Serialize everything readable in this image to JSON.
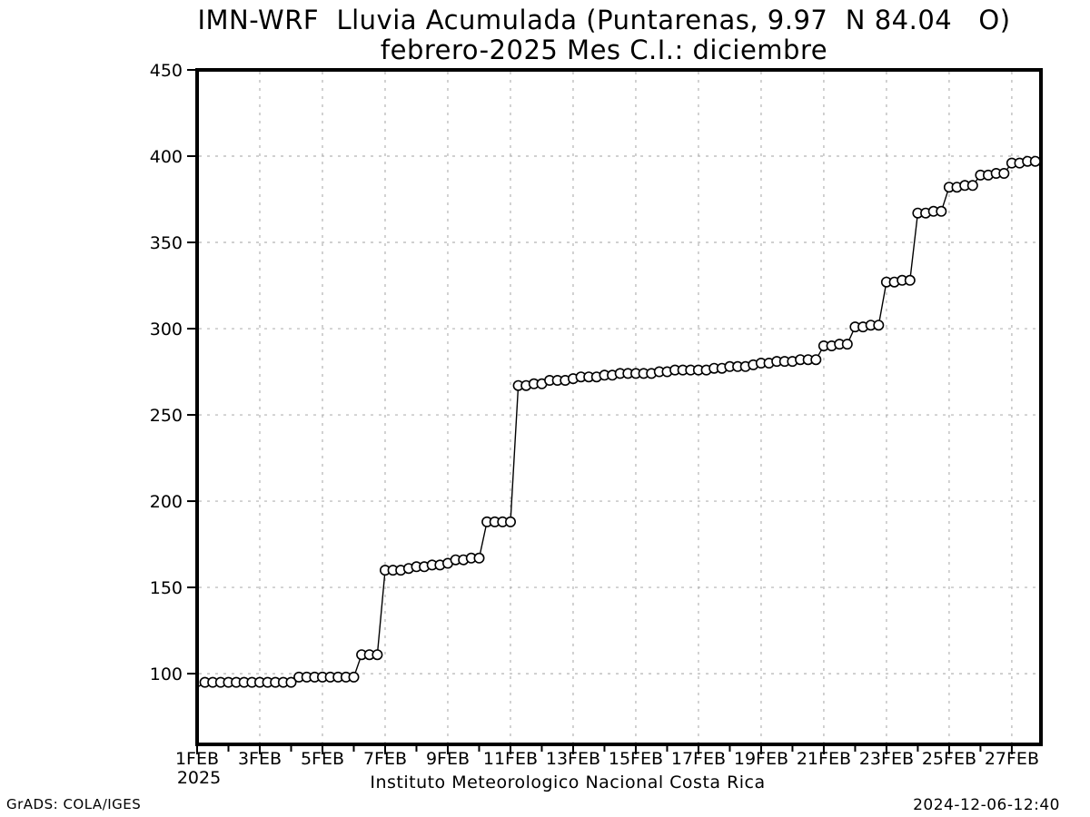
{
  "header": {
    "title_line1": "IMN-WRF  Lluvia Acumulada (Puntarenas, 9.97  N 84.04   O)",
    "title_line2": "febrero-2025 Mes C.I.: diciembre"
  },
  "footer": {
    "caption": "Instituto Meteorologico Nacional Costa Rica",
    "grads_credit": "GrADS: COLA/IGES",
    "timestamp": "2024-12-06-12:40"
  },
  "chart_data": {
    "type": "line",
    "title": "IMN-WRF  Lluvia Acumulada (Puntarenas, 9.97 N 84.04 O) — febrero-2025 Mes C.I.: diciembre",
    "xlabel": "Instituto Meteorologico Nacional Costa Rica",
    "ylabel": "",
    "grid": "dashed",
    "legend": "none",
    "marker": "open-circle",
    "colors": {
      "line": "#000000",
      "marker_fill": "#ffffff",
      "grid": "#b3b3b3",
      "axis": "#000000"
    },
    "ylim": [
      59,
      450
    ],
    "xlim_days": [
      1,
      27.93
    ],
    "y_ticks": [
      100,
      150,
      200,
      250,
      300,
      350,
      400,
      450
    ],
    "x_tick_days": [
      1,
      3,
      5,
      7,
      9,
      11,
      13,
      15,
      17,
      19,
      21,
      23,
      25,
      27
    ],
    "x_tick_labels": [
      "1FEB",
      "3FEB",
      "5FEB",
      "7FEB",
      "9FEB",
      "11FEB",
      "13FEB",
      "15FEB",
      "17FEB",
      "19FEB",
      "21FEB",
      "23FEB",
      "25FEB",
      "27FEB"
    ],
    "x_minor_tick_days": [
      2,
      4,
      6,
      8,
      10,
      12,
      14,
      16,
      18,
      20,
      22,
      24,
      26
    ],
    "x_year_label": "2025",
    "series": [
      {
        "name": "Lluvia acumulada (mm)",
        "start_day_of_feb": 1.25,
        "day_step": 0.25,
        "interval_hours": 6,
        "lead_in_point": {
          "day": 1.0,
          "value": 92
        },
        "values": [
          95,
          95,
          95,
          95,
          95,
          95,
          95,
          95,
          95,
          95,
          95,
          95,
          98,
          98,
          98,
          98,
          98,
          98,
          98,
          98,
          111,
          111,
          111,
          160,
          160,
          160,
          161,
          162,
          162,
          163,
          163,
          164,
          166,
          166,
          167,
          167,
          188,
          188,
          188,
          188,
          267,
          267,
          268,
          268,
          270,
          270,
          270,
          271,
          272,
          272,
          272,
          273,
          273,
          274,
          274,
          274,
          274,
          274,
          275,
          275,
          276,
          276,
          276,
          276,
          276,
          277,
          277,
          278,
          278,
          278,
          279,
          280,
          280,
          281,
          281,
          281,
          282,
          282,
          282,
          290,
          290,
          291,
          291,
          301,
          301,
          302,
          302,
          327,
          327,
          328,
          328,
          367,
          367,
          368,
          368,
          382,
          382,
          383,
          383,
          389,
          389,
          390,
          390,
          396,
          396,
          397,
          397
        ]
      }
    ]
  }
}
